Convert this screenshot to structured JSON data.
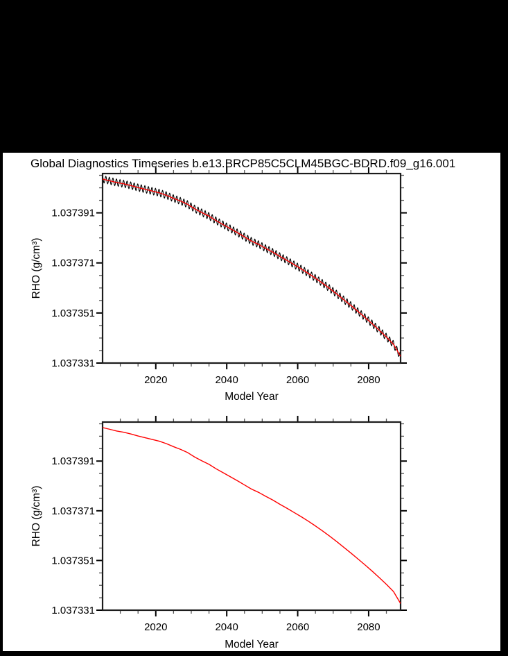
{
  "title": "Global Diagnostics Timeseries b.e13.BRCP85C5CLM45BGC-BDRD.f09_g16.001",
  "colors": {
    "letterbox_background": "#000000",
    "figure_background": "#ffffff",
    "axis_frame": "#1c1c1c",
    "major_tick": "#000000",
    "minor_tick": "#555555",
    "monthly_series": "#000000",
    "annual_series": "#ff0000",
    "text": "#000000"
  },
  "chart_data": {
    "type": "line",
    "x_label": "Model Year",
    "y_label": "RHO (g/cm³)",
    "x_range": [
      2005,
      2089
    ],
    "y_range": [
      1.037331,
      1.0374067
    ],
    "x_ticks_major": [
      2020,
      2040,
      2060,
      2080
    ],
    "x_tick_labels": [
      "2020",
      "2040",
      "2060",
      "2080"
    ],
    "x_minor_step": 5,
    "y_ticks_major": [
      1.037391,
      1.037371,
      1.037351,
      1.037331
    ],
    "y_tick_labels": [
      "1.037391",
      "1.037371",
      "1.037351",
      "1.037331"
    ],
    "y_minor_step": 5e-06,
    "grid": false,
    "legend": "none",
    "annual_series": {
      "name": "annual-mean RHO",
      "color": "#ff0000",
      "years": [
        2005,
        2007,
        2009,
        2011,
        2013,
        2015,
        2017,
        2019,
        2021,
        2023,
        2025,
        2027,
        2029,
        2031,
        2033,
        2035,
        2037,
        2039,
        2041,
        2043,
        2045,
        2047,
        2049,
        2051,
        2053,
        2055,
        2057,
        2059,
        2061,
        2063,
        2065,
        2067,
        2069,
        2071,
        2073,
        2075,
        2077,
        2079,
        2081,
        2083,
        2085,
        2087,
        2089
      ],
      "rho": [
        1.0374045,
        1.0374038,
        1.0374031,
        1.0374026,
        1.0374019,
        1.0374011,
        1.0374004,
        1.0373997,
        1.037399,
        1.037398,
        1.0373968,
        1.0373957,
        1.0373944,
        1.0373926,
        1.0373911,
        1.0373897,
        1.0373879,
        1.0373863,
        1.0373847,
        1.0373831,
        1.0373814,
        1.0373797,
        1.0373784,
        1.0373768,
        1.0373753,
        1.0373736,
        1.037372,
        1.0373703,
        1.0373686,
        1.0373668,
        1.0373649,
        1.0373629,
        1.0373608,
        1.0373586,
        1.0373563,
        1.037354,
        1.0373516,
        1.0373492,
        1.0373467,
        1.0373441,
        1.0373414,
        1.0373385,
        1.0373337
      ]
    },
    "monthly_series": {
      "name": "monthly RHO",
      "color": "#000000",
      "derived_from": "annual_series",
      "seasonal_amplitude": 1.4e-06,
      "samples_per_year": 12
    },
    "panels": [
      {
        "id": "top",
        "content": "monthly values with annual-mean overlay",
        "show": [
          "monthly",
          "annual"
        ]
      },
      {
        "id": "bottom",
        "content": "annual-mean values only",
        "show": [
          "annual"
        ]
      }
    ]
  }
}
